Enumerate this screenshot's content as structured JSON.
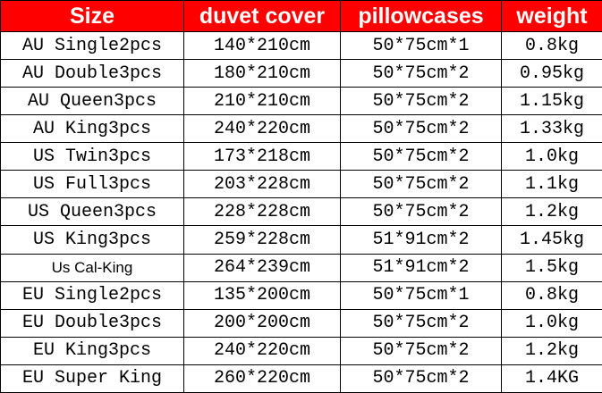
{
  "table": {
    "header": [
      "Size",
      "duvet cover",
      "pillowcases",
      "weight"
    ],
    "rows": [
      [
        "AU Single2pcs",
        "140*210cm",
        "50*75cm*1",
        "0.8kg"
      ],
      [
        "AU Double3pcs",
        "180*210cm",
        "50*75cm*2",
        "0.95kg"
      ],
      [
        "AU Queen3pcs",
        "210*210cm",
        "50*75cm*2",
        "1.15kg"
      ],
      [
        "AU King3pcs",
        "240*220cm",
        "50*75cm*2",
        "1.33kg"
      ],
      [
        "US Twin3pcs",
        "173*218cm",
        "50*75cm*2",
        "1.0kg"
      ],
      [
        "US Full3pcs",
        "203*228cm",
        "50*75cm*2",
        "1.1kg"
      ],
      [
        "US Queen3pcs",
        "228*228cm",
        "50*75cm*2",
        "1.2kg"
      ],
      [
        "US King3pcs",
        "259*228cm",
        "51*91cm*2",
        "1.45kg"
      ],
      [
        "Us Cal-King",
        "264*239cm",
        "51*91cm*2",
        "1.5kg"
      ],
      [
        "EU Single2pcs",
        "135*200cm",
        "50*75cm*1",
        "0.8kg"
      ],
      [
        "EU Double3pcs",
        "200*200cm",
        "50*75cm*2",
        "1.0kg"
      ],
      [
        "EU King3pcs",
        "240*220cm",
        "50*75cm*2",
        "1.2kg"
      ],
      [
        "EU Super King",
        "260*220cm",
        "50*75cm*2",
        "1.4KG"
      ]
    ]
  }
}
